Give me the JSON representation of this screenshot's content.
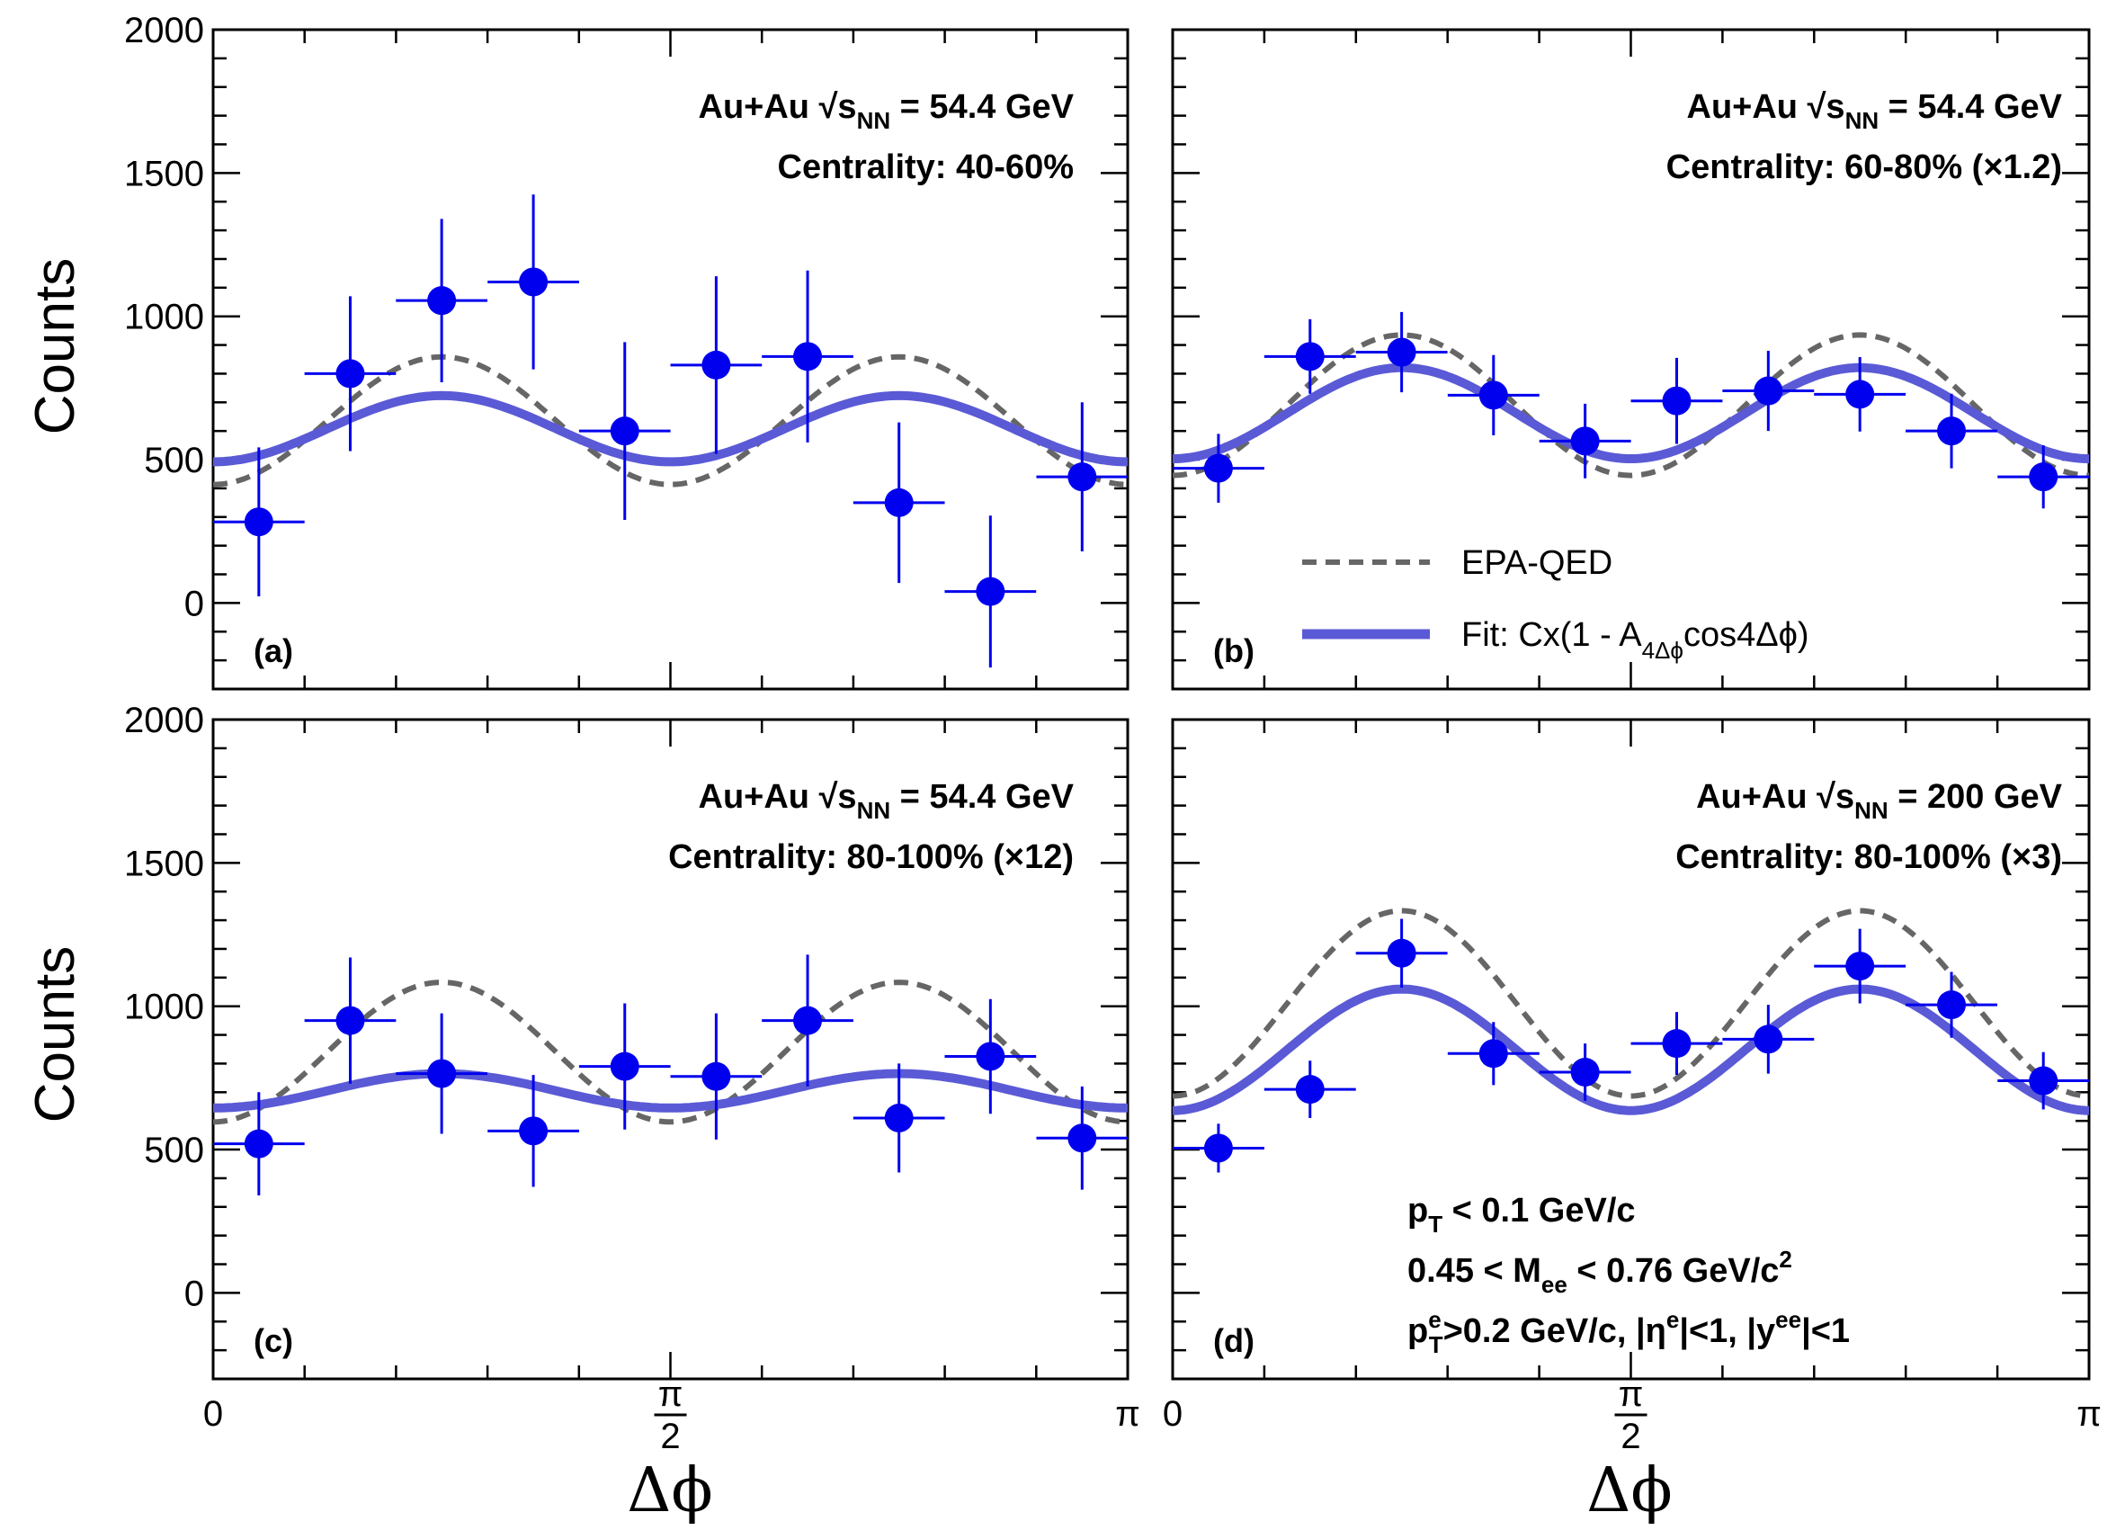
{
  "figure": {
    "ylabel": "Counts",
    "xlabel": "Δϕ",
    "x_ticks": [
      "0",
      "π/2",
      "π"
    ],
    "y_ticks": [
      "0",
      "500",
      "1000",
      "1500",
      "2000"
    ],
    "legend": {
      "epa_label": "EPA-QED",
      "fit_label_pre": "Fit: Cx(1 - A",
      "fit_label_sub": "4Δϕ",
      "fit_label_post": "cos4Δϕ)"
    },
    "cuts": {
      "line1_main": "p",
      "line1_sub": "T",
      "line1_rest": " < 0.1 GeV/c",
      "line2_pre": "0.45 < M",
      "line2_sub": "ee",
      "line2_rest": " < 0.76 GeV/c",
      "line2_sup": "2",
      "line3_p": "p",
      "line3_sup": "e",
      "line3_sub": "T",
      "line3_mid": ">0.2 GeV/c, |η",
      "line3_sup2": "e",
      "line3_mid2": "|<1, |y",
      "line3_sup3": "ee",
      "line3_end": "|<1"
    },
    "colors": {
      "data": "#0000ee",
      "fit": "#5a5ad6",
      "epa": "#666666"
    }
  },
  "chart_data": [
    {
      "type": "scatter",
      "panel_label": "(a)",
      "system": "Au+Au",
      "energy_label": "= 54.4 GeV",
      "centrality": "Centrality: 40-60%",
      "xlim": [
        0,
        3.14159
      ],
      "ylim": [
        -300,
        2000
      ],
      "x": [
        0.157,
        0.471,
        0.785,
        1.1,
        1.414,
        1.728,
        2.042,
        2.356,
        2.67,
        2.985
      ],
      "y": [
        283,
        800,
        1055,
        1120,
        600,
        830,
        860,
        350,
        40,
        440
      ],
      "yerr": [
        260,
        270,
        285,
        305,
        310,
        310,
        300,
        280,
        265,
        260
      ],
      "epa": {
        "C": 636,
        "A": 0.35
      },
      "fit": {
        "C": 608,
        "A": 0.19
      }
    },
    {
      "type": "scatter",
      "panel_label": "(b)",
      "system": "Au+Au",
      "energy_label": "= 54.4 GeV",
      "centrality": "Centrality: 60-80% (×1.2)",
      "xlim": [
        0,
        3.14159
      ],
      "ylim": [
        -300,
        2000
      ],
      "x": [
        0.157,
        0.471,
        0.785,
        1.1,
        1.414,
        1.728,
        2.042,
        2.356,
        2.67,
        2.985
      ],
      "y": [
        470,
        860,
        875,
        725,
        565,
        705,
        740,
        728,
        600,
        440
      ],
      "yerr": [
        120,
        130,
        140,
        140,
        130,
        150,
        140,
        130,
        130,
        110
      ],
      "epa": {
        "C": 690,
        "A": 0.355
      },
      "fit": {
        "C": 662,
        "A": 0.24
      }
    },
    {
      "type": "scatter",
      "panel_label": "(c)",
      "system": "Au+Au",
      "energy_label": "= 54.4 GeV",
      "centrality": "Centrality: 80-100% (×12)",
      "xlim": [
        0,
        3.14159
      ],
      "ylim": [
        -300,
        2000
      ],
      "x": [
        0.157,
        0.471,
        0.785,
        1.1,
        1.414,
        1.728,
        2.042,
        2.356,
        2.67,
        2.985
      ],
      "y": [
        520,
        950,
        765,
        565,
        790,
        755,
        950,
        610,
        825,
        540
      ],
      "yerr": [
        180,
        220,
        210,
        195,
        220,
        220,
        230,
        190,
        200,
        180
      ],
      "epa": {
        "C": 840,
        "A": 0.29
      },
      "fit": {
        "C": 705,
        "A": 0.085
      }
    },
    {
      "type": "scatter",
      "panel_label": "(d)",
      "system": "Au+Au",
      "energy_label": "= 200 GeV",
      "centrality": "Centrality: 80-100% (×3)",
      "xlim": [
        0,
        3.14159
      ],
      "ylim": [
        -300,
        2000
      ],
      "x": [
        0.157,
        0.471,
        0.785,
        1.1,
        1.414,
        1.728,
        2.042,
        2.356,
        2.67,
        2.985
      ],
      "y": [
        505,
        710,
        1185,
        835,
        770,
        870,
        885,
        1140,
        1005,
        740
      ],
      "yerr": [
        85,
        100,
        120,
        110,
        100,
        110,
        120,
        130,
        115,
        100
      ],
      "epa": {
        "C": 1010,
        "A": 0.32
      },
      "fit": {
        "C": 848,
        "A": 0.25
      }
    }
  ]
}
